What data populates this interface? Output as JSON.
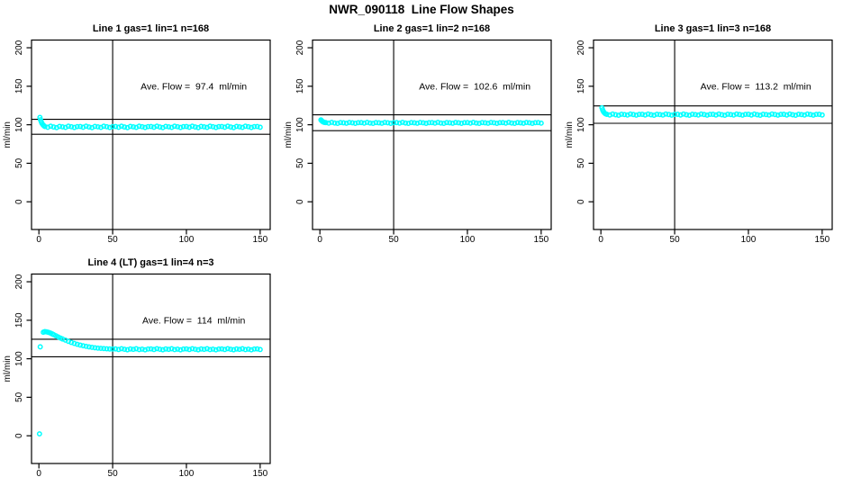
{
  "figure": {
    "title": "NWR_090118  Line Flow Shapes",
    "background": "#ffffff"
  },
  "colors": {
    "points": "#00ffff",
    "axis": "#000000",
    "text": "#000000"
  },
  "chart_data": [
    {
      "type": "scatter",
      "title": "Line 1 gas=1 lin=1 n=168",
      "ylabel": "ml/min",
      "xlabel": "",
      "annotation": "Ave. Flow =  97.4  ml/min",
      "ave_flow": 97.4,
      "x_ticks": [
        0,
        50,
        100,
        150
      ],
      "y_ticks": [
        0,
        50,
        100,
        150,
        200
      ],
      "xlim": [
        -5,
        156.8
      ],
      "ylim": [
        -36,
        210
      ],
      "grid": false,
      "ref_lines": {
        "vline_x": 50,
        "hline_upper": 107.1,
        "hline_lower": 87.7
      },
      "annotation_pos": {
        "x": 105,
        "y": 150
      },
      "points": [
        [
          0.7,
          109.5
        ],
        [
          1.1,
          106.5
        ],
        [
          1.6,
          103.8
        ],
        [
          2.1,
          101.7
        ],
        [
          2.7,
          100.1
        ],
        [
          3.3,
          98.9
        ],
        [
          4,
          97.7
        ],
        [
          6,
          96.8
        ],
        [
          8,
          98.2
        ],
        [
          10,
          97.1
        ],
        [
          12,
          96.3
        ],
        [
          14,
          97.9
        ],
        [
          16,
          97.3
        ],
        [
          18,
          96.6
        ],
        [
          20,
          98.1
        ],
        [
          22,
          97.4
        ],
        [
          24,
          96.5
        ],
        [
          26,
          97.6
        ],
        [
          28,
          97.7
        ],
        [
          30,
          96.8
        ],
        [
          32,
          98.2
        ],
        [
          34,
          97.1
        ],
        [
          36,
          96.3
        ],
        [
          38,
          97.9
        ],
        [
          40,
          97.3
        ],
        [
          42,
          96.6
        ],
        [
          44,
          98.1
        ],
        [
          46,
          97.4
        ],
        [
          48,
          96.5
        ],
        [
          50,
          97.6
        ],
        [
          52,
          97.7
        ],
        [
          54,
          96.8
        ],
        [
          56,
          98.2
        ],
        [
          58,
          97.1
        ],
        [
          60,
          96.3
        ],
        [
          62,
          97.9
        ],
        [
          64,
          97.3
        ],
        [
          66,
          96.6
        ],
        [
          68,
          98.1
        ],
        [
          70,
          97.4
        ],
        [
          72,
          96.5
        ],
        [
          74,
          97.6
        ],
        [
          76,
          97.7
        ],
        [
          78,
          96.8
        ],
        [
          80,
          98.2
        ],
        [
          82,
          97.1
        ],
        [
          84,
          96.3
        ],
        [
          86,
          97.9
        ],
        [
          88,
          97.3
        ],
        [
          90,
          96.6
        ],
        [
          92,
          98.1
        ],
        [
          94,
          97.4
        ],
        [
          96,
          96.5
        ],
        [
          98,
          97.6
        ],
        [
          100,
          97.7
        ],
        [
          102,
          96.8
        ],
        [
          104,
          98.2
        ],
        [
          106,
          97.1
        ],
        [
          108,
          96.3
        ],
        [
          110,
          97.9
        ],
        [
          112,
          97.3
        ],
        [
          114,
          96.6
        ],
        [
          116,
          98.1
        ],
        [
          118,
          97.4
        ],
        [
          120,
          96.5
        ],
        [
          122,
          97.6
        ],
        [
          124,
          97.7
        ],
        [
          126,
          96.8
        ],
        [
          128,
          98.2
        ],
        [
          130,
          97.1
        ],
        [
          132,
          96.3
        ],
        [
          134,
          97.9
        ],
        [
          136,
          97.3
        ],
        [
          138,
          96.6
        ],
        [
          140,
          98.1
        ],
        [
          142,
          97.4
        ],
        [
          144,
          96.5
        ],
        [
          146,
          97.6
        ],
        [
          148,
          97.7
        ],
        [
          150,
          96.8
        ]
      ]
    },
    {
      "type": "scatter",
      "title": "Line 2 gas=1 lin=2 n=168",
      "ylabel": "ml/min",
      "xlabel": "",
      "annotation": "Ave. Flow =  102.6  ml/min",
      "ave_flow": 102.6,
      "x_ticks": [
        0,
        50,
        100,
        150
      ],
      "y_ticks": [
        0,
        50,
        100,
        150,
        200
      ],
      "xlim": [
        -5,
        156.8
      ],
      "ylim": [
        -36,
        210
      ],
      "grid": false,
      "ref_lines": {
        "vline_x": 50,
        "hline_upper": 112.9,
        "hline_lower": 92.3
      },
      "annotation_pos": {
        "x": 105,
        "y": 150
      },
      "points": [
        [
          0.7,
          106.4
        ],
        [
          1.2,
          105.2
        ],
        [
          1.8,
          104.2
        ],
        [
          2.4,
          103.5
        ],
        [
          3.1,
          103.0
        ],
        [
          4,
          102.8
        ],
        [
          6,
          102.1
        ],
        [
          8,
          103.1
        ],
        [
          10,
          102.3
        ],
        [
          12,
          101.8
        ],
        [
          14,
          102.9
        ],
        [
          16,
          102.5
        ],
        [
          18,
          102.0
        ],
        [
          20,
          103.0
        ],
        [
          22,
          102.6
        ],
        [
          24,
          101.9
        ],
        [
          26,
          102.7
        ],
        [
          28,
          102.8
        ],
        [
          30,
          102.1
        ],
        [
          32,
          103.1
        ],
        [
          34,
          102.3
        ],
        [
          36,
          101.8
        ],
        [
          38,
          102.9
        ],
        [
          40,
          102.5
        ],
        [
          42,
          102.0
        ],
        [
          44,
          103.0
        ],
        [
          46,
          102.6
        ],
        [
          48,
          101.9
        ],
        [
          50,
          102.7
        ],
        [
          52,
          102.8
        ],
        [
          54,
          102.1
        ],
        [
          56,
          103.1
        ],
        [
          58,
          102.3
        ],
        [
          60,
          101.8
        ],
        [
          62,
          102.9
        ],
        [
          64,
          102.5
        ],
        [
          66,
          102.0
        ],
        [
          68,
          103.0
        ],
        [
          70,
          102.6
        ],
        [
          72,
          101.9
        ],
        [
          74,
          102.7
        ],
        [
          76,
          102.8
        ],
        [
          78,
          102.1
        ],
        [
          80,
          103.1
        ],
        [
          82,
          102.3
        ],
        [
          84,
          101.8
        ],
        [
          86,
          102.9
        ],
        [
          88,
          102.5
        ],
        [
          90,
          102.0
        ],
        [
          92,
          103.0
        ],
        [
          94,
          102.6
        ],
        [
          96,
          101.9
        ],
        [
          98,
          102.7
        ],
        [
          100,
          102.8
        ],
        [
          102,
          102.1
        ],
        [
          104,
          103.1
        ],
        [
          106,
          102.3
        ],
        [
          108,
          101.8
        ],
        [
          110,
          102.9
        ],
        [
          112,
          102.5
        ],
        [
          114,
          102.0
        ],
        [
          116,
          103.0
        ],
        [
          118,
          102.6
        ],
        [
          120,
          101.9
        ],
        [
          122,
          102.7
        ],
        [
          124,
          102.8
        ],
        [
          126,
          102.1
        ],
        [
          128,
          103.1
        ],
        [
          130,
          102.3
        ],
        [
          132,
          101.8
        ],
        [
          134,
          102.9
        ],
        [
          136,
          102.5
        ],
        [
          138,
          102.0
        ],
        [
          140,
          103.0
        ],
        [
          142,
          102.6
        ],
        [
          144,
          101.9
        ],
        [
          146,
          102.7
        ],
        [
          148,
          102.8
        ],
        [
          150,
          102.1
        ]
      ]
    },
    {
      "type": "scatter",
      "title": "Line 3 gas=1 lin=3 n=168",
      "ylabel": "ml/min",
      "xlabel": "",
      "annotation": "Ave. Flow =  113.2  ml/min",
      "ave_flow": 113.2,
      "x_ticks": [
        0,
        50,
        100,
        150
      ],
      "y_ticks": [
        0,
        50,
        100,
        150,
        200
      ],
      "xlim": [
        -5,
        156.8
      ],
      "ylim": [
        -36,
        210
      ],
      "grid": false,
      "ref_lines": {
        "vline_x": 50,
        "hline_upper": 124.5,
        "hline_lower": 101.9
      },
      "annotation_pos": {
        "x": 105,
        "y": 150
      },
      "points": [
        [
          0.7,
          122.0
        ],
        [
          1.2,
          119.3
        ],
        [
          1.8,
          117.0
        ],
        [
          2.4,
          115.4
        ],
        [
          3.1,
          114.3
        ],
        [
          4,
          113.6
        ],
        [
          6,
          112.7
        ],
        [
          8,
          113.9
        ],
        [
          10,
          113.0
        ],
        [
          12,
          112.4
        ],
        [
          14,
          113.7
        ],
        [
          16,
          113.2
        ],
        [
          18,
          112.6
        ],
        [
          20,
          113.9
        ],
        [
          22,
          113.3
        ],
        [
          24,
          112.5
        ],
        [
          26,
          113.5
        ],
        [
          28,
          113.6
        ],
        [
          30,
          112.7
        ],
        [
          32,
          113.9
        ],
        [
          34,
          113.0
        ],
        [
          36,
          112.4
        ],
        [
          38,
          113.7
        ],
        [
          40,
          113.2
        ],
        [
          42,
          112.6
        ],
        [
          44,
          113.9
        ],
        [
          46,
          113.3
        ],
        [
          48,
          112.5
        ],
        [
          50,
          113.5
        ],
        [
          52,
          113.6
        ],
        [
          54,
          112.7
        ],
        [
          56,
          113.9
        ],
        [
          58,
          113.0
        ],
        [
          60,
          112.4
        ],
        [
          62,
          113.7
        ],
        [
          64,
          113.2
        ],
        [
          66,
          112.6
        ],
        [
          68,
          113.9
        ],
        [
          70,
          113.3
        ],
        [
          72,
          112.5
        ],
        [
          74,
          113.5
        ],
        [
          76,
          113.6
        ],
        [
          78,
          112.7
        ],
        [
          80,
          113.9
        ],
        [
          82,
          113.0
        ],
        [
          84,
          112.4
        ],
        [
          86,
          113.7
        ],
        [
          88,
          113.2
        ],
        [
          90,
          112.6
        ],
        [
          92,
          113.9
        ],
        [
          94,
          113.3
        ],
        [
          96,
          112.5
        ],
        [
          98,
          113.5
        ],
        [
          100,
          113.6
        ],
        [
          102,
          112.7
        ],
        [
          104,
          113.9
        ],
        [
          106,
          113.0
        ],
        [
          108,
          112.4
        ],
        [
          110,
          113.7
        ],
        [
          112,
          113.2
        ],
        [
          114,
          112.6
        ],
        [
          116,
          113.9
        ],
        [
          118,
          113.3
        ],
        [
          120,
          112.5
        ],
        [
          122,
          113.5
        ],
        [
          124,
          113.6
        ],
        [
          126,
          112.7
        ],
        [
          128,
          113.9
        ],
        [
          130,
          113.0
        ],
        [
          132,
          112.4
        ],
        [
          134,
          113.7
        ],
        [
          136,
          113.2
        ],
        [
          138,
          112.6
        ],
        [
          140,
          113.9
        ],
        [
          142,
          113.3
        ],
        [
          144,
          112.5
        ],
        [
          146,
          113.5
        ],
        [
          148,
          113.6
        ],
        [
          150,
          112.7
        ]
      ]
    },
    {
      "type": "scatter",
      "title": "Line 4 (LT) gas=1 lin=4 n=3",
      "ylabel": "ml/min",
      "xlabel": "",
      "annotation": "Ave. Flow =  114  ml/min",
      "ave_flow": 114,
      "x_ticks": [
        0,
        50,
        100,
        150
      ],
      "y_ticks": [
        0,
        50,
        100,
        150,
        200
      ],
      "xlim": [
        -5,
        156.8
      ],
      "ylim": [
        -36,
        210
      ],
      "grid": false,
      "ref_lines": {
        "vline_x": 50,
        "hline_upper": 125.4,
        "hline_lower": 102.6
      },
      "annotation_pos": {
        "x": 105,
        "y": 150
      },
      "points": [
        [
          0.4,
          2.5
        ],
        [
          0.9,
          115.5
        ],
        [
          3,
          134.5
        ],
        [
          4,
          135.2
        ],
        [
          5,
          135.0
        ],
        [
          6,
          134.6
        ],
        [
          7,
          134.0
        ],
        [
          8,
          133.2
        ],
        [
          9,
          132.3
        ],
        [
          10,
          131.3
        ],
        [
          11.5,
          129.9
        ],
        [
          13,
          128.4
        ],
        [
          14.5,
          127.0
        ],
        [
          16,
          125.7
        ],
        [
          18,
          124.2
        ],
        [
          20,
          122.6
        ],
        [
          22,
          121.2
        ],
        [
          24,
          119.9
        ],
        [
          26,
          118.8
        ],
        [
          28,
          117.8
        ],
        [
          30,
          116.9
        ],
        [
          32,
          116.1
        ],
        [
          34,
          115.4
        ],
        [
          36,
          114.8
        ],
        [
          38,
          114.3
        ],
        [
          40,
          113.8
        ],
        [
          42,
          113.5
        ],
        [
          44,
          113.2
        ],
        [
          46,
          112.9
        ],
        [
          48,
          112.7
        ],
        [
          50,
          112.6
        ],
        [
          52,
          112.8
        ],
        [
          54,
          112.0
        ],
        [
          56,
          113.1
        ],
        [
          58,
          112.3
        ],
        [
          60,
          111.7
        ],
        [
          62,
          112.7
        ],
        [
          64,
          112.2
        ],
        [
          66,
          113.0
        ],
        [
          68,
          111.9
        ],
        [
          70,
          112.5
        ],
        [
          72,
          111.6
        ],
        [
          74,
          112.6
        ],
        [
          76,
          112.8
        ],
        [
          78,
          112.0
        ],
        [
          80,
          113.1
        ],
        [
          82,
          112.3
        ],
        [
          84,
          111.7
        ],
        [
          86,
          112.7
        ],
        [
          88,
          112.2
        ],
        [
          90,
          113.0
        ],
        [
          92,
          111.9
        ],
        [
          94,
          112.5
        ],
        [
          96,
          111.6
        ],
        [
          98,
          112.6
        ],
        [
          100,
          112.8
        ],
        [
          102,
          112.0
        ],
        [
          104,
          113.1
        ],
        [
          106,
          112.3
        ],
        [
          108,
          111.7
        ],
        [
          110,
          112.7
        ],
        [
          112,
          112.2
        ],
        [
          114,
          113.0
        ],
        [
          116,
          111.9
        ],
        [
          118,
          112.5
        ],
        [
          120,
          111.6
        ],
        [
          122,
          112.6
        ],
        [
          124,
          112.8
        ],
        [
          126,
          112.0
        ],
        [
          128,
          113.1
        ],
        [
          130,
          112.3
        ],
        [
          132,
          111.7
        ],
        [
          134,
          112.7
        ],
        [
          136,
          112.2
        ],
        [
          138,
          113.0
        ],
        [
          140,
          111.9
        ],
        [
          142,
          112.5
        ],
        [
          144,
          111.6
        ],
        [
          146,
          112.6
        ],
        [
          148,
          112.8
        ],
        [
          150,
          112.0
        ]
      ]
    }
  ]
}
